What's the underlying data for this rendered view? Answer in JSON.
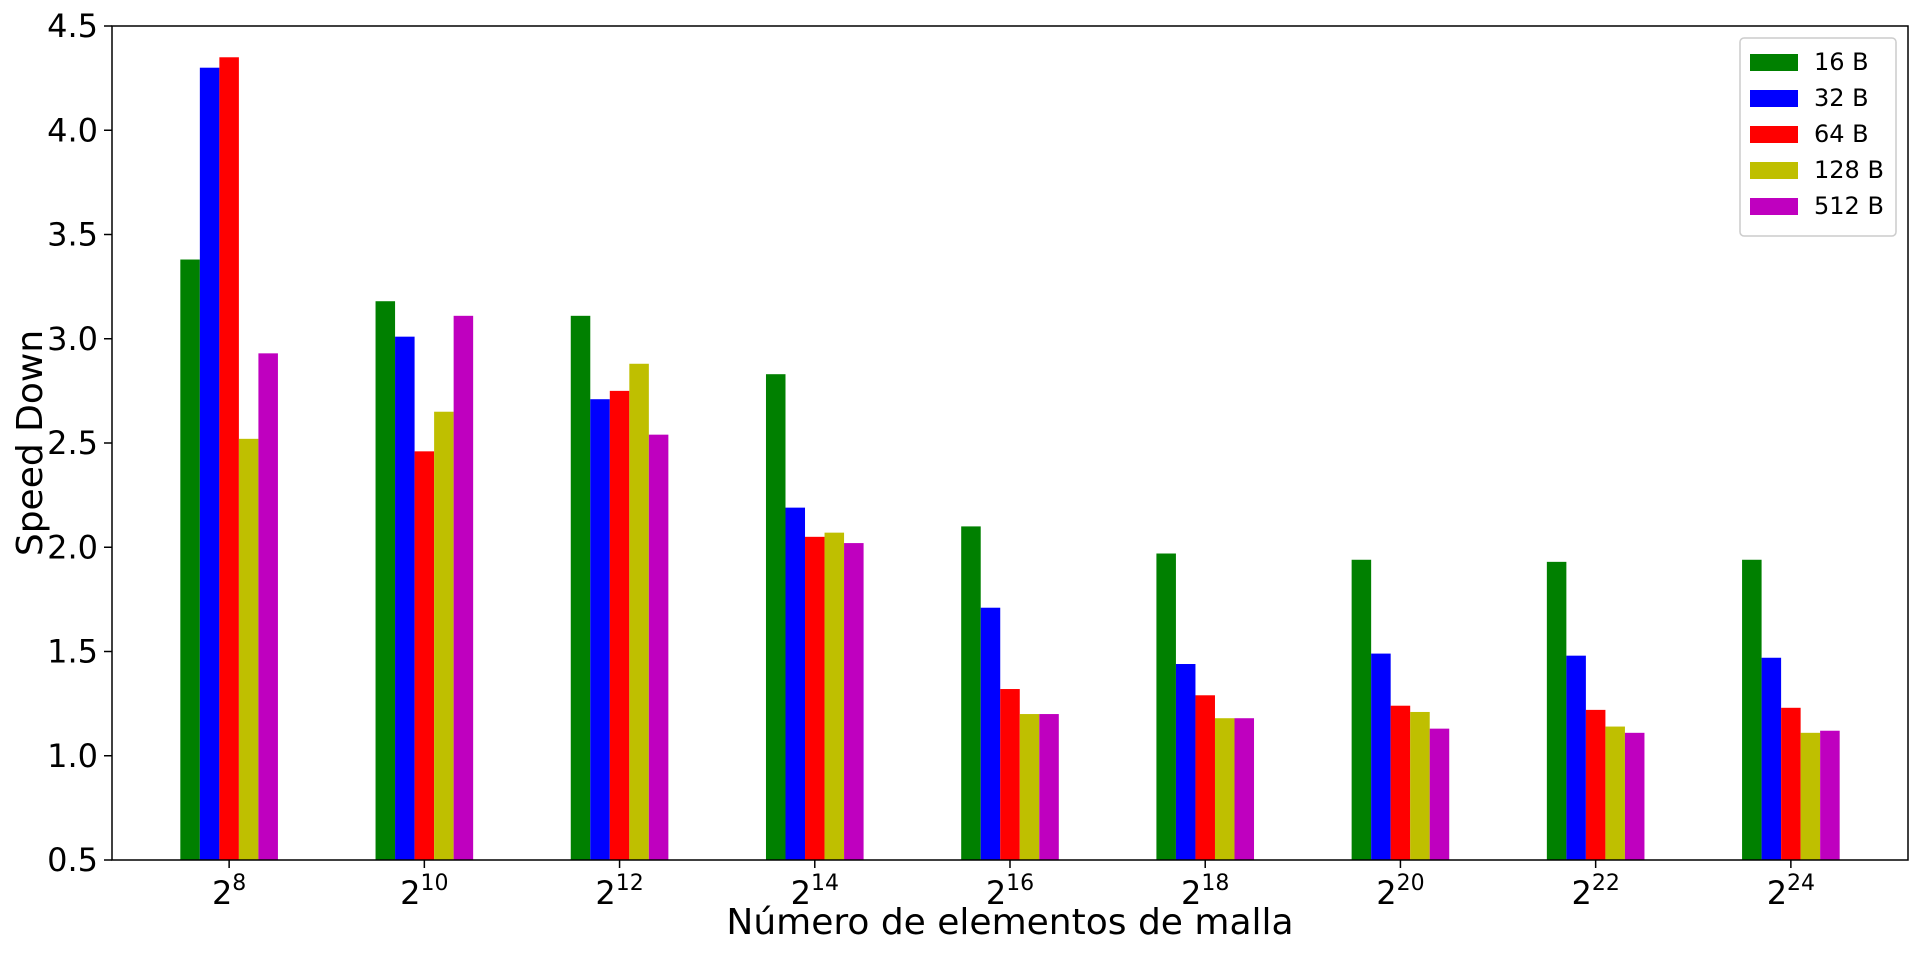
{
  "chart_data": {
    "type": "bar",
    "title": "",
    "xlabel": "Número de elementos de malla",
    "ylabel": "Speed Down",
    "ylim": [
      0.5,
      4.5
    ],
    "yticks": [
      "0.5",
      "1.0",
      "1.5",
      "2.0",
      "2.5",
      "3.0",
      "3.5",
      "4.0",
      "4.5"
    ],
    "categories": [
      {
        "base": "2",
        "exp": "8"
      },
      {
        "base": "2",
        "exp": "10"
      },
      {
        "base": "2",
        "exp": "12"
      },
      {
        "base": "2",
        "exp": "14"
      },
      {
        "base": "2",
        "exp": "16"
      },
      {
        "base": "2",
        "exp": "18"
      },
      {
        "base": "2",
        "exp": "20"
      },
      {
        "base": "2",
        "exp": "22"
      },
      {
        "base": "2",
        "exp": "24"
      }
    ],
    "legend_position": "top-right",
    "grid": false,
    "series": [
      {
        "name": "16 B",
        "color": "#008000",
        "values": [
          3.38,
          3.18,
          3.11,
          2.83,
          2.1,
          1.97,
          1.94,
          1.93,
          1.94
        ]
      },
      {
        "name": "32 B",
        "color": "#0000ff",
        "values": [
          4.3,
          3.01,
          2.71,
          2.19,
          1.71,
          1.44,
          1.49,
          1.48,
          1.47
        ]
      },
      {
        "name": "64 B",
        "color": "#ff0000",
        "values": [
          4.35,
          2.46,
          2.75,
          2.05,
          1.32,
          1.29,
          1.24,
          1.22,
          1.23
        ]
      },
      {
        "name": "128 B",
        "color": "#bfbf00",
        "values": [
          2.52,
          2.65,
          2.88,
          2.07,
          1.2,
          1.18,
          1.21,
          1.14,
          1.11
        ]
      },
      {
        "name": "512 B",
        "color": "#bf00bf",
        "values": [
          2.93,
          3.11,
          2.54,
          2.02,
          1.2,
          1.18,
          1.13,
          1.11,
          1.12
        ]
      }
    ]
  }
}
